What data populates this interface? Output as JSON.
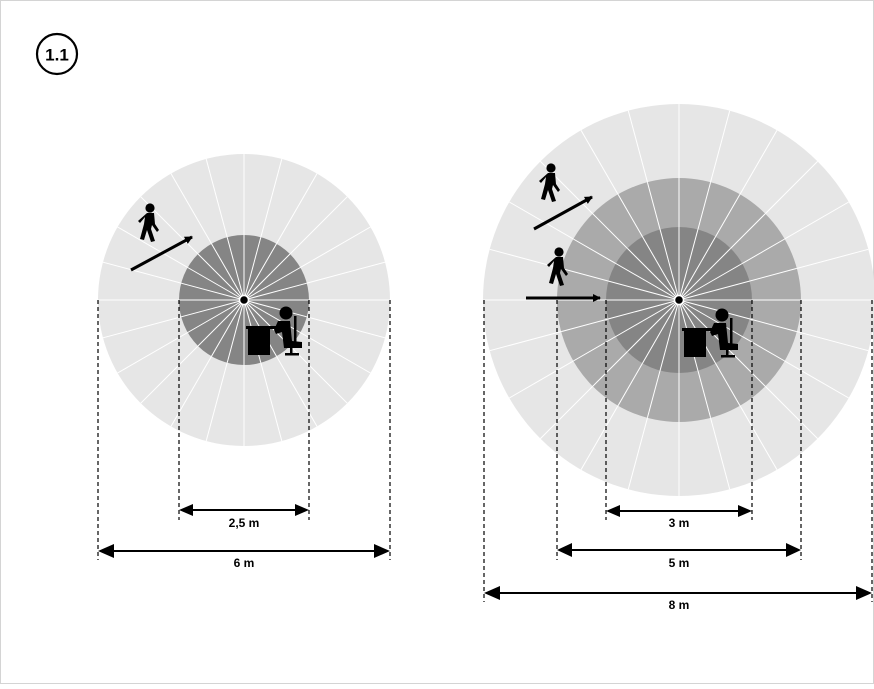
{
  "figure": {
    "badge_label": "1.1",
    "left_detector": {
      "inner_diameter_label": "2,5 m",
      "outer_diameter_label": "6 m"
    },
    "right_detector": {
      "inner_diameter_label": "3 m",
      "middle_diameter_label": "5 m",
      "outer_diameter_label": "8 m"
    }
  },
  "colors": {
    "outer_zone": "#e6e6e6",
    "middle_zone": "#aaaaaa",
    "inner_zone": "#858585",
    "rays_outer": "#ffffff",
    "line": "#000000",
    "border": "#d4d4d4"
  }
}
